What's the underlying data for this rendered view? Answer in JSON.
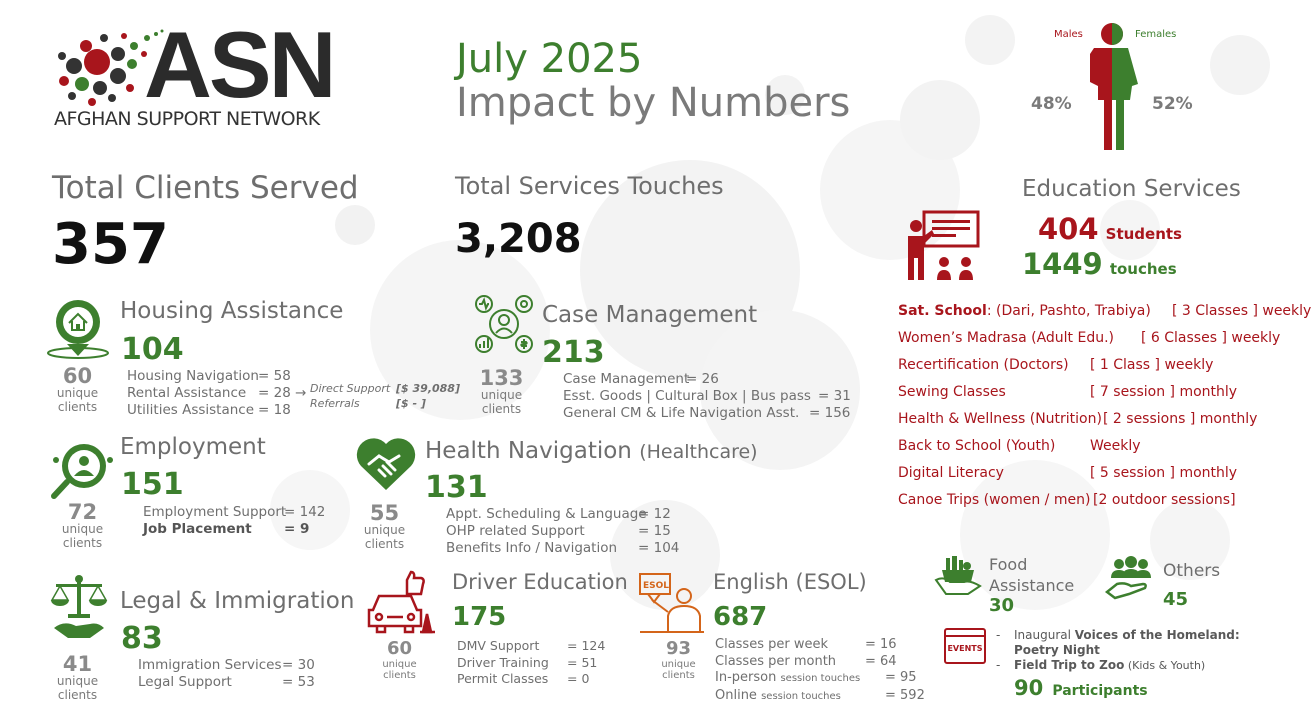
{
  "logo": {
    "brand": "ASN",
    "subtitle": "AFGHAN SUPPORT NETWORK"
  },
  "header": {
    "month": "July 2025",
    "title": "Impact by Numbers"
  },
  "gender": {
    "males_label": "Males",
    "females_label": "Females",
    "males_pct": "48%",
    "females_pct": "52%"
  },
  "totals": {
    "clients_label": "Total Clients Served",
    "clients_value": "357",
    "touches_label": "Total Services Touches",
    "touches_value": "3,208"
  },
  "housing": {
    "title": "Housing Assistance",
    "value": "104",
    "unique_value": "60",
    "unique_label1": "unique",
    "unique_label2": "clients",
    "lines": [
      {
        "k": "Housing Navigation",
        "v": "=  58"
      },
      {
        "k": "Rental Assistance",
        "v": "=  28 →"
      },
      {
        "k": "Utilities Assistance",
        "v": "=  18"
      }
    ],
    "direct_support_label": "Direct Support",
    "direct_support_value": "[$  39,088]",
    "referrals_label": "Referrals",
    "referrals_value": "[$     -     ]"
  },
  "case_management": {
    "title": "Case Management",
    "value": "213",
    "unique_value": "133",
    "unique_label1": "unique",
    "unique_label2": "clients",
    "lines": [
      {
        "k": "Case Management",
        "v": "=  26"
      },
      {
        "k": "Esst. Goods | Cultural Box | Bus pass",
        "v": "=   31"
      },
      {
        "k": "General CM & Life Navigation  Asst.",
        "v": "=  156"
      }
    ]
  },
  "employment": {
    "title": "Employment",
    "value": "151",
    "unique_value": "72",
    "unique_label1": "unique",
    "unique_label2": "clients",
    "lines": [
      {
        "k": "Employment Support",
        "v": "= 142"
      },
      {
        "k": "Job Placement",
        "v": "=   9"
      }
    ]
  },
  "health": {
    "title": "Health Navigation",
    "title_suffix": "(Healthcare)",
    "value": "131",
    "unique_value": "55",
    "unique_label1": "unique",
    "unique_label2": "clients",
    "lines": [
      {
        "k": "Appt. Scheduling & Language",
        "v": "=   12"
      },
      {
        "k": "OHP related Support",
        "v": "=   15"
      },
      {
        "k": "Benefits Info / Navigation",
        "v": "= 104"
      }
    ]
  },
  "legal": {
    "title": "Legal & Immigration",
    "value": "83",
    "unique_value": "41",
    "unique_label1": "unique",
    "unique_label2": "clients",
    "lines": [
      {
        "k": "Immigration Services",
        "v": "=  30"
      },
      {
        "k": "Legal Support",
        "v": "=  53"
      }
    ]
  },
  "driver": {
    "title": "Driver Education",
    "value": "175",
    "unique_value": "60",
    "unique_label1": "unique",
    "unique_label2": "clients",
    "lines": [
      {
        "k": "DMV Support",
        "v": "= 124"
      },
      {
        "k": "Driver Training",
        "v": "=   51"
      },
      {
        "k": "Permit Classes",
        "v": "=    0"
      }
    ]
  },
  "esol": {
    "title": "English (ESOL)",
    "value": "687",
    "icon_text": "ESOL",
    "unique_value": "93",
    "unique_label1": "unique",
    "unique_label2": "clients",
    "lines": [
      {
        "k": "Classes per week",
        "small": "",
        "v": "=   16"
      },
      {
        "k": "Classes per month",
        "small": "",
        "v": "=  64"
      },
      {
        "k": "In-person",
        "small": "session touches",
        "v": "=    95"
      },
      {
        "k": "Online",
        "small": "session touches",
        "v": "=   592"
      }
    ]
  },
  "education": {
    "title": "Education Services",
    "students_value": "404",
    "students_label": "Students",
    "touches_value": "1449",
    "touches_label": "touches",
    "programs": [
      {
        "name": "Sat. School",
        "name_detail": ": (Dari, Pashto, Trabiya)",
        "freq": "[ 3 Classes ] weekly"
      },
      {
        "name": "Women’s Madrasa (Adult Edu.)",
        "name_detail": "",
        "freq": "[ 6 Classes ] weekly"
      },
      {
        "name": "Recertification (Doctors)",
        "name_detail": "",
        "freq": "[ 1 Class ]  weekly"
      },
      {
        "name": "Sewing Classes",
        "name_detail": "",
        "freq": "[ 7 session ] monthly"
      },
      {
        "name": "Health & Wellness (Nutrition)",
        "name_detail": "",
        "freq": "[ 2 sessions ] monthly"
      },
      {
        "name": "Back to School (Youth)",
        "name_detail": "",
        "freq": "Weekly"
      },
      {
        "name": "Digital Literacy",
        "name_detail": "",
        "freq": "[ 5 session ] monthly"
      },
      {
        "name": "Canoe Trips  (women / men)",
        "name_detail": "",
        "freq": "[2 outdoor sessions]"
      }
    ]
  },
  "food": {
    "label1": "Food",
    "label2": "Assistance",
    "value": "30"
  },
  "others": {
    "label": "Others",
    "value": "45"
  },
  "events": {
    "icon_text": "EVENTS",
    "item1_prefix": "Inaugural ",
    "item1_bold": "Voices of the Homeland:",
    "item1_bold2": "Poetry Night",
    "item2_bold": "Field Trip to Zoo",
    "item2_rest": " (Kids & Youth)",
    "participants_value": "90",
    "participants_label": "Participants"
  },
  "colors": {
    "green": "#3d7f2e",
    "red": "#a8151c",
    "gray": "#6e6e6e"
  }
}
